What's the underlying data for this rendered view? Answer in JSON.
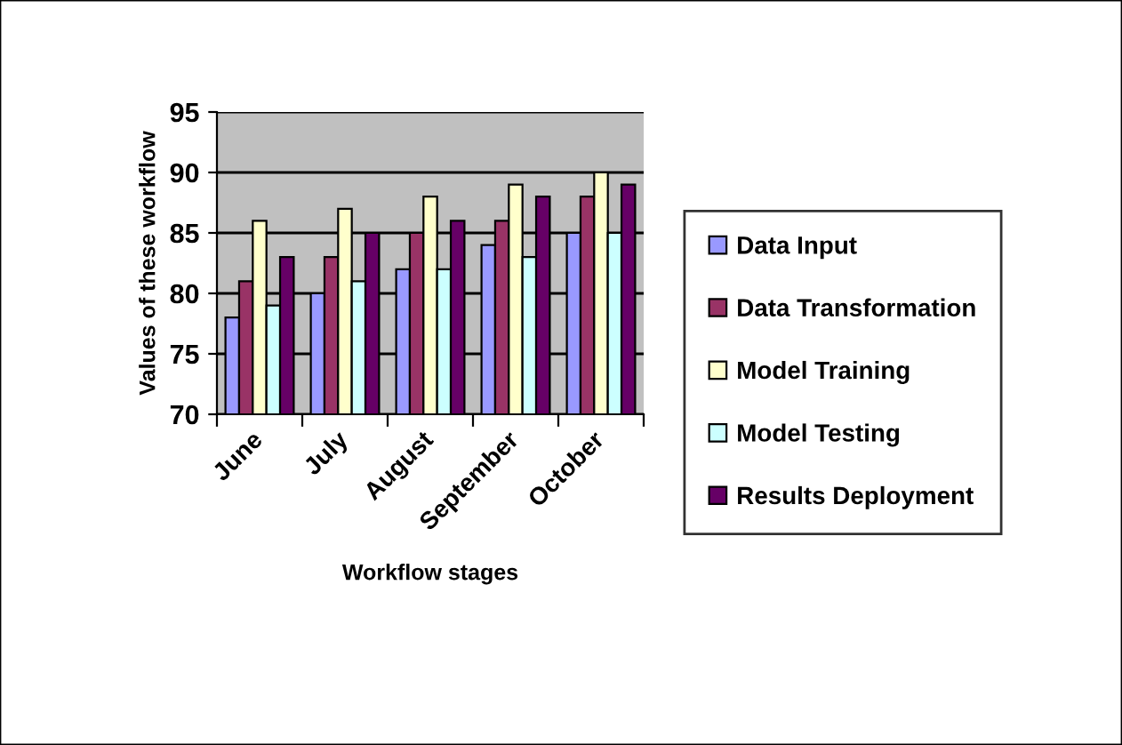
{
  "chart_data": {
    "type": "bar",
    "xlabel": "Workflow stages",
    "ylabel": "Values of these workflow",
    "categories": [
      "June",
      "July",
      "August",
      "September",
      "October"
    ],
    "series": [
      {
        "name": "Data Input",
        "color": "#9999ff",
        "values": [
          78,
          80,
          82,
          84,
          85
        ]
      },
      {
        "name": "Data Transformation",
        "color": "#993366",
        "values": [
          81,
          83,
          85,
          86,
          88
        ]
      },
      {
        "name": "Model Training",
        "color": "#ffffcc",
        "values": [
          86,
          87,
          88,
          89,
          90
        ]
      },
      {
        "name": "Model Testing",
        "color": "#ccffff",
        "values": [
          79,
          81,
          82,
          83,
          85
        ]
      },
      {
        "name": "Results Deployment",
        "color": "#660066",
        "values": [
          83,
          85,
          86,
          88,
          89
        ]
      }
    ],
    "ylim": [
      70,
      95
    ],
    "yticks": [
      70,
      75,
      80,
      85,
      90,
      95
    ],
    "grid": "y",
    "legend": "right"
  }
}
